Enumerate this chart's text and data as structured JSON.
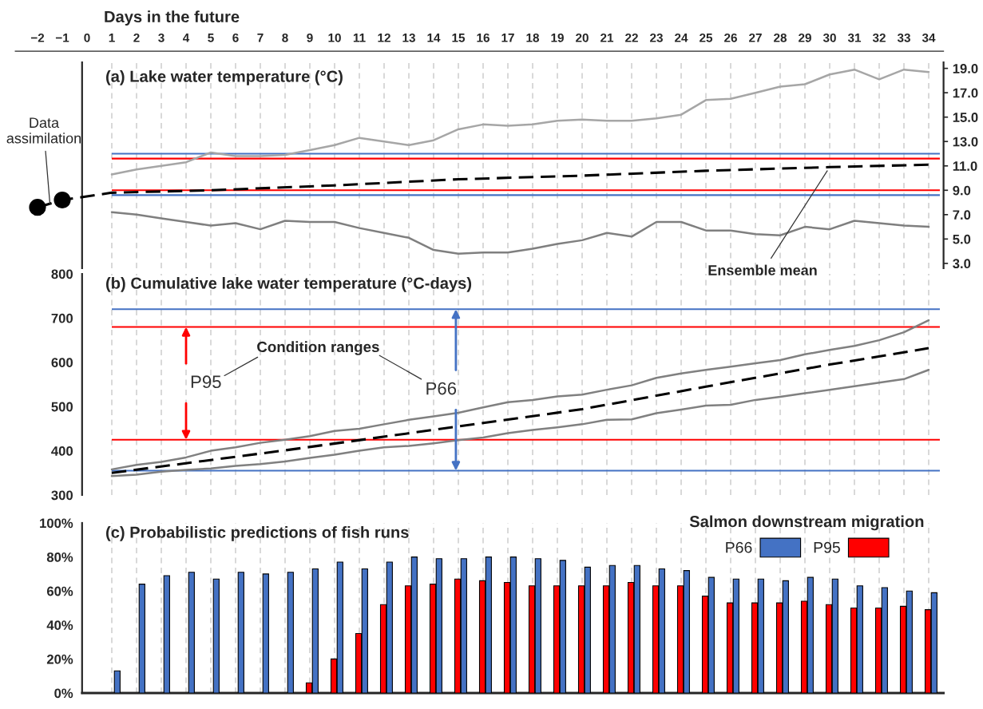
{
  "chart_data": [
    {
      "type": "line",
      "title": "(a) Lake water temperature (°C)",
      "xlabel": "Days in the future",
      "xlim": [
        -2.9,
        34.6
      ],
      "xticks": [
        {
          "value": -2,
          "label": "−2"
        },
        {
          "value": -1,
          "label": "−1"
        },
        0,
        1,
        2,
        3,
        4,
        5,
        6,
        7,
        8,
        9,
        10,
        11,
        12,
        13,
        14,
        15,
        16,
        17,
        18,
        19,
        20,
        21,
        22,
        23,
        24,
        25,
        26,
        27,
        28,
        29,
        30,
        31,
        32,
        33,
        34
      ],
      "ylim": [
        2.6,
        19.5
      ],
      "yticks": [
        {
          "value": 3,
          "label": "3.0"
        },
        {
          "value": 5,
          "label": "5.0"
        },
        {
          "value": 7,
          "label": "7.0"
        },
        {
          "value": 9,
          "label": "9.0"
        },
        {
          "value": 11,
          "label": "11.0"
        },
        {
          "value": 13,
          "label": "13.0"
        },
        {
          "value": 15,
          "label": "15.0"
        },
        {
          "value": 17,
          "label": "17.0"
        },
        {
          "value": 19,
          "label": "19.0"
        }
      ],
      "grid": "x",
      "series": [
        {
          "color": "#a6a6a6",
          "x": [
            1,
            2,
            3,
            4,
            5,
            6,
            7,
            8,
            9,
            10,
            11,
            12,
            13,
            14,
            15,
            16,
            17,
            18,
            19,
            20,
            21,
            22,
            23,
            24,
            25,
            26,
            27,
            28,
            29,
            30,
            31,
            32,
            33,
            34
          ],
          "values": [
            10.3,
            10.7,
            11.0,
            11.3,
            12.1,
            11.8,
            11.8,
            11.9,
            12.3,
            12.7,
            13.3,
            13.0,
            12.7,
            13.1,
            14.0,
            14.4,
            14.3,
            14.4,
            14.7,
            14.8,
            14.7,
            14.7,
            14.9,
            15.2,
            16.4,
            16.5,
            17.0,
            17.5,
            17.7,
            18.5,
            18.9,
            18.1,
            18.9,
            18.7
          ]
        },
        {
          "color": "#7f7f7f",
          "x": [
            1,
            2,
            3,
            4,
            5,
            6,
            7,
            8,
            9,
            10,
            11,
            12,
            13,
            14,
            15,
            16,
            17,
            18,
            19,
            20,
            21,
            22,
            23,
            24,
            25,
            26,
            27,
            28,
            29,
            30,
            31,
            32,
            33,
            34
          ],
          "values": [
            7.2,
            7.0,
            6.7,
            6.4,
            6.1,
            6.3,
            5.8,
            6.5,
            6.4,
            6.4,
            5.9,
            5.5,
            5.1,
            4.1,
            3.8,
            3.9,
            3.9,
            4.2,
            4.6,
            4.9,
            5.5,
            5.2,
            6.4,
            6.4,
            5.7,
            5.7,
            5.4,
            5.3,
            6.0,
            5.8,
            6.5,
            6.3,
            6.1,
            6.0
          ]
        },
        {
          "color": "#000000",
          "line_style": "dashed",
          "x": [
            -2,
            -1,
            1,
            5,
            10,
            15,
            20,
            25,
            30,
            34
          ],
          "values": [
            7.6,
            8.2,
            8.8,
            9.0,
            9.4,
            9.9,
            10.2,
            10.6,
            10.9,
            11.1
          ]
        },
        {
          "type": "scatter",
          "color": "#000000",
          "marker": "circle",
          "x": [
            -2,
            -1
          ],
          "values": [
            7.6,
            8.2
          ]
        }
      ],
      "ref_lines": [
        {
          "axis": "y",
          "value": 12.0,
          "color": "#4472c4"
        },
        {
          "axis": "y",
          "value": 11.6,
          "color": "#ff0000"
        },
        {
          "axis": "y",
          "value": 9.0,
          "color": "#ff0000"
        },
        {
          "axis": "y",
          "value": 8.6,
          "color": "#4472c4"
        }
      ],
      "annotations": [
        {
          "text": "Data assimilation",
          "x": -1.5,
          "y": 7.9
        },
        {
          "text": "Ensemble mean",
          "x": 30,
          "y": 10.9
        }
      ]
    },
    {
      "type": "line",
      "title": "(b) Cumulative lake water temperature (°C-days)",
      "xlim": [
        -0.2,
        34.6
      ],
      "xticks": [
        1,
        2,
        3,
        4,
        5,
        6,
        7,
        8,
        9,
        10,
        11,
        12,
        13,
        14,
        15,
        16,
        17,
        18,
        19,
        20,
        21,
        22,
        23,
        24,
        25,
        26,
        27,
        28,
        29,
        30,
        31,
        32,
        33,
        34
      ],
      "tick_labels": "y",
      "ylim": [
        300,
        800
      ],
      "yticks": [
        300,
        400,
        500,
        600,
        700,
        800
      ],
      "grid": "x",
      "series": [
        {
          "color": "#808080",
          "x": [
            1,
            2,
            3,
            4,
            5,
            6,
            7,
            8,
            9,
            10,
            11,
            12,
            13,
            14,
            15,
            16,
            17,
            18,
            19,
            20,
            21,
            22,
            23,
            24,
            25,
            26,
            27,
            28,
            29,
            30,
            31,
            32,
            33,
            34
          ],
          "values": [
            358,
            368,
            375,
            385,
            400,
            408,
            418,
            425,
            433,
            445,
            450,
            460,
            470,
            478,
            486,
            498,
            510,
            515,
            523,
            527,
            538,
            548,
            565,
            575,
            583,
            590,
            598,
            605,
            618,
            628,
            637,
            650,
            668,
            695
          ]
        },
        {
          "color": "#808080",
          "x": [
            1,
            2,
            3,
            4,
            5,
            6,
            7,
            8,
            9,
            10,
            11,
            12,
            13,
            14,
            15,
            16,
            17,
            18,
            19,
            20,
            21,
            22,
            23,
            24,
            25,
            26,
            27,
            28,
            29,
            30,
            31,
            32,
            33,
            34
          ],
          "values": [
            343,
            346,
            353,
            357,
            360,
            366,
            370,
            376,
            384,
            391,
            400,
            408,
            411,
            417,
            424,
            430,
            440,
            447,
            453,
            460,
            470,
            471,
            485,
            493,
            502,
            504,
            515,
            522,
            530,
            538,
            546,
            554,
            562,
            583
          ]
        },
        {
          "color": "#000000",
          "line_style": "dashed",
          "x": [
            1,
            8,
            15,
            20,
            25,
            30,
            34
          ],
          "values": [
            350,
            401,
            455,
            494,
            545,
            595,
            632
          ]
        }
      ],
      "ref_lines": [
        {
          "axis": "y",
          "value": 680,
          "color": "#ff0000"
        },
        {
          "axis": "y",
          "value": 425,
          "color": "#ff0000"
        },
        {
          "axis": "y",
          "value": 720,
          "color": "#4472c4"
        },
        {
          "axis": "y",
          "value": 355,
          "color": "#4472c4"
        }
      ],
      "annotations": [
        "Condition ranges",
        {
          "text": "P95",
          "x": 4.0,
          "y": 680
        },
        {
          "text": "P66",
          "x": 14.9,
          "y": 720
        }
      ]
    },
    {
      "type": "bar",
      "title": "(c) Probabilistic predictions of fish runs",
      "xlim": [
        -0.2,
        34.6
      ],
      "xticks": [
        1,
        2,
        3,
        4,
        5,
        6,
        7,
        8,
        9,
        10,
        11,
        12,
        13,
        14,
        15,
        16,
        17,
        18,
        19,
        20,
        21,
        22,
        23,
        24,
        25,
        26,
        27,
        28,
        29,
        30,
        31,
        32,
        33,
        34
      ],
      "tick_labels": "y",
      "ylim": [
        0,
        100
      ],
      "yticks": [
        {
          "value": 0,
          "label": "0%"
        },
        {
          "value": 20,
          "label": "20%"
        },
        {
          "value": 40,
          "label": "40%"
        },
        {
          "value": 60,
          "label": "60%"
        },
        {
          "value": 80,
          "label": "80%"
        },
        {
          "value": 100,
          "label": "100%"
        }
      ],
      "grid": "x",
      "legend": "top right",
      "legend_title": "Salmon downstream migration",
      "x": [
        1,
        2,
        3,
        4,
        5,
        6,
        7,
        8,
        9,
        10,
        11,
        12,
        13,
        14,
        15,
        16,
        17,
        18,
        19,
        20,
        21,
        22,
        23,
        24,
        25,
        26,
        27,
        28,
        29,
        30,
        31,
        32,
        33,
        34
      ],
      "series": [
        {
          "name": "P95",
          "color": "#ff0000",
          "values": [
            null,
            null,
            null,
            null,
            null,
            null,
            null,
            null,
            6,
            20,
            35,
            52,
            63,
            64,
            67,
            66,
            65,
            63,
            63,
            63,
            63,
            65,
            63,
            63,
            57,
            53,
            53,
            53,
            54,
            52,
            50,
            50,
            51,
            49
          ]
        },
        {
          "name": "P66",
          "color": "#4472c4",
          "values": [
            13,
            64,
            69,
            71,
            67,
            71,
            70,
            71,
            73,
            77,
            73,
            77,
            80,
            79,
            79,
            80,
            80,
            79,
            78,
            74,
            75,
            75,
            73,
            72,
            68,
            67,
            67,
            66,
            68,
            67,
            63,
            62,
            60,
            59
          ]
        }
      ]
    }
  ]
}
